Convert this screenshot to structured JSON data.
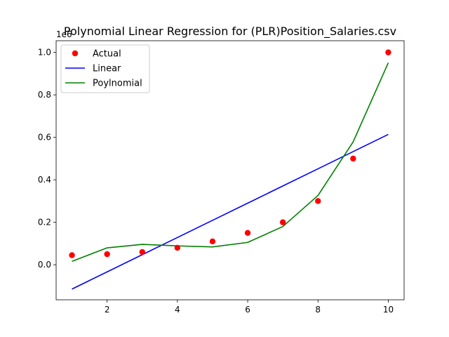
{
  "chart_data": {
    "type": "line",
    "title": "Polynomial Linear Regression for (PLR)Position_Salaries.csv",
    "xlabel": "",
    "ylabel": "",
    "offset_label": "1e6",
    "xlim": [
      0.55,
      10.45
    ],
    "ylim": [
      -0.165,
      1.055
    ],
    "x_ticks": [
      2,
      4,
      6,
      8,
      10
    ],
    "x_tick_labels": [
      "2",
      "4",
      "6",
      "8",
      "10"
    ],
    "y_ticks": [
      0.0,
      0.2,
      0.4,
      0.6,
      0.8,
      1.0
    ],
    "y_tick_labels": [
      "0.0",
      "0.2",
      "0.4",
      "0.6",
      "0.8",
      "1.0"
    ],
    "x": [
      1,
      2,
      3,
      4,
      5,
      6,
      7,
      8,
      9,
      10
    ],
    "series": [
      {
        "name": "Actual",
        "kind": "scatter",
        "color": "#ff0000",
        "values": [
          0.045,
          0.05,
          0.06,
          0.08,
          0.11,
          0.15,
          0.2,
          0.3,
          0.5,
          1.0
        ]
      },
      {
        "name": "Linear",
        "kind": "line",
        "color": "#0000ff",
        "values": [
          -0.1145,
          -0.0336,
          0.0474,
          0.1283,
          0.2092,
          0.2901,
          0.371,
          0.4519,
          0.5329,
          0.6138
        ]
      },
      {
        "name": "Poylnomial",
        "kind": "line",
        "color": "#008000",
        "values": [
          0.0159,
          0.0796,
          0.0959,
          0.0889,
          0.084,
          0.1053,
          0.1799,
          0.3262,
          0.5787,
          0.9512
        ]
      }
    ],
    "legend": {
      "position": "top-left",
      "entries": [
        "Actual",
        "Linear",
        "Poylnomial"
      ]
    },
    "grid": false
  }
}
